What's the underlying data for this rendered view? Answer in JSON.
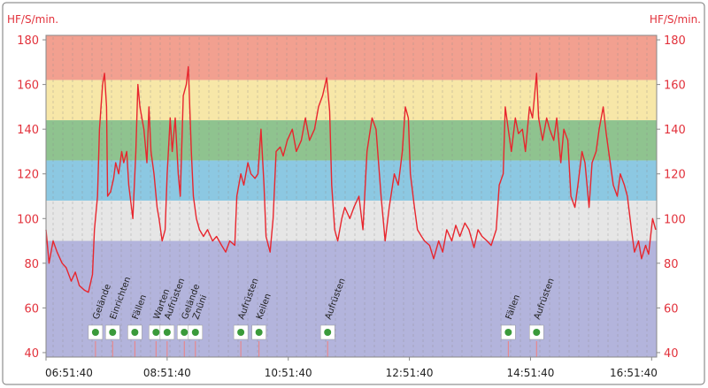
{
  "chart_data": {
    "type": "line",
    "y_label": "HF/S/min.",
    "ylim": [
      38,
      182
    ],
    "yticks": [
      40,
      60,
      80,
      100,
      120,
      140,
      160,
      180
    ],
    "xlim": [
      0,
      605
    ],
    "xticks": [
      {
        "value": 0,
        "label": "06:51:40"
      },
      {
        "value": 120,
        "label": "08:51:40"
      },
      {
        "value": 240,
        "label": "10:51:40"
      },
      {
        "value": 360,
        "label": "12:51:40"
      },
      {
        "value": 480,
        "label": "14:51:40"
      },
      {
        "value": 600,
        "label": "16:51:40"
      }
    ],
    "bands": [
      {
        "from": 162,
        "to": 182,
        "color": "#f2a090"
      },
      {
        "from": 144,
        "to": 162,
        "color": "#f7e7a8"
      },
      {
        "from": 126,
        "to": 144,
        "color": "#8fc38f"
      },
      {
        "from": 108,
        "to": 126,
        "color": "#8cc8e2"
      },
      {
        "from": 90,
        "to": 108,
        "color": "#e6e6e6"
      },
      {
        "from": 38,
        "to": 90,
        "color": "#b3b4dc"
      }
    ],
    "events": [
      {
        "label": "Gelände",
        "x": 49
      },
      {
        "label": "Einrichten",
        "x": 66
      },
      {
        "label": "Fällen",
        "x": 88
      },
      {
        "label": "Warten",
        "x": 109
      },
      {
        "label": "Aufrüsten",
        "x": 120
      },
      {
        "label": "Gelände",
        "x": 137
      },
      {
        "label": "Znüni",
        "x": 148
      },
      {
        "label": "Aufrüsten",
        "x": 193
      },
      {
        "label": "Keilen",
        "x": 211
      },
      {
        "label": "Aufrüsten",
        "x": 279
      },
      {
        "label": "Fällen",
        "x": 458
      },
      {
        "label": "Aufrüsten",
        "x": 486
      }
    ],
    "series": [
      {
        "color": "#e8262e",
        "x": [
          0,
          3,
          7,
          11,
          16,
          20,
          25,
          29,
          33,
          38,
          42,
          46,
          48,
          51,
          53,
          56,
          58,
          60,
          61,
          64,
          67,
          69,
          72,
          75,
          77,
          80,
          82,
          86,
          89,
          91,
          93,
          95,
          97,
          100,
          102,
          104,
          107,
          110,
          112,
          115,
          118,
          120,
          123,
          125,
          128,
          131,
          133,
          136,
          139,
          141,
          144,
          146,
          149,
          152,
          156,
          160,
          165,
          169,
          174,
          178,
          182,
          187,
          189,
          193,
          196,
          200,
          203,
          207,
          210,
          213,
          216,
          218,
          222,
          225,
          228,
          232,
          235,
          239,
          244,
          248,
          253,
          257,
          261,
          266,
          270,
          274,
          278,
          281,
          283,
          286,
          289,
          293,
          296,
          301,
          305,
          310,
          314,
          318,
          323,
          327,
          332,
          336,
          340,
          345,
          349,
          353,
          356,
          359,
          361,
          365,
          368,
          372,
          375,
          380,
          384,
          389,
          393,
          397,
          402,
          406,
          410,
          415,
          419,
          424,
          428,
          432,
          437,
          441,
          446,
          449,
          453,
          455,
          458,
          461,
          465,
          468,
          472,
          475,
          479,
          482,
          486,
          488,
          492,
          496,
          499,
          503,
          506,
          510,
          513,
          517,
          520,
          524,
          527,
          531,
          534,
          538,
          541,
          545,
          548,
          552,
          555,
          559,
          562,
          566,
          569,
          573,
          576,
          580,
          583,
          587,
          590,
          594,
          597,
          601,
          604
        ],
        "values": [
          95,
          80,
          90,
          85,
          80,
          78,
          72,
          76,
          70,
          68,
          67,
          75,
          95,
          110,
          140,
          160,
          165,
          150,
          110,
          112,
          118,
          125,
          120,
          130,
          125,
          130,
          115,
          100,
          130,
          160,
          150,
          145,
          140,
          125,
          150,
          130,
          120,
          105,
          100,
          90,
          95,
          120,
          145,
          130,
          145,
          120,
          110,
          155,
          160,
          168,
          130,
          110,
          100,
          95,
          92,
          95,
          90,
          92,
          88,
          85,
          90,
          88,
          110,
          120,
          115,
          125,
          120,
          118,
          120,
          140,
          115,
          92,
          85,
          100,
          130,
          132,
          128,
          135,
          140,
          130,
          135,
          145,
          135,
          140,
          150,
          155,
          163,
          148,
          115,
          95,
          90,
          100,
          105,
          100,
          105,
          110,
          95,
          130,
          145,
          140,
          110,
          90,
          105,
          120,
          115,
          130,
          150,
          145,
          120,
          105,
          95,
          92,
          90,
          88,
          82,
          90,
          85,
          95,
          90,
          97,
          92,
          98,
          95,
          87,
          95,
          92,
          90,
          88,
          95,
          115,
          120,
          150,
          140,
          130,
          145,
          138,
          140,
          130,
          150,
          145,
          165,
          145,
          135,
          145,
          140,
          135,
          145,
          125,
          140,
          135,
          110,
          105,
          115,
          130,
          125,
          105,
          125,
          130,
          140,
          150,
          138,
          125,
          115,
          110,
          120,
          115,
          110,
          95,
          85,
          90,
          82,
          88,
          84,
          100,
          95
        ]
      }
    ]
  }
}
